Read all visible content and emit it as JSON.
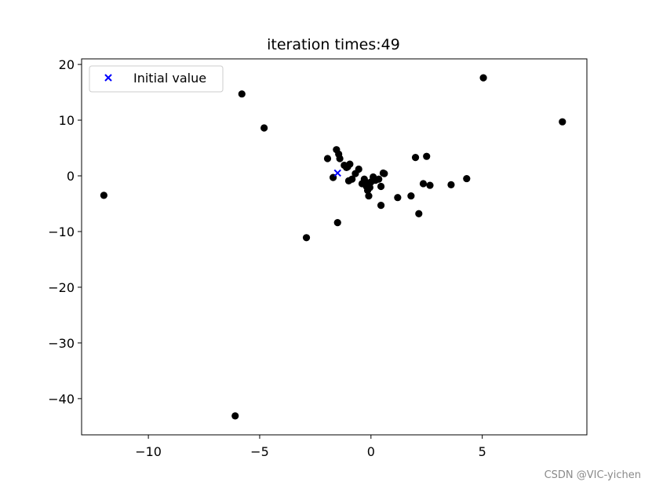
{
  "chart_data": {
    "type": "scatter",
    "title": "iteration times:49",
    "xlabel": "",
    "ylabel": "",
    "xlim": [
      -13,
      9.7
    ],
    "ylim": [
      -46.5,
      21
    ],
    "xticks": [
      -10,
      -5,
      0,
      5
    ],
    "yticks": [
      20,
      10,
      0,
      -10,
      -20,
      -30,
      -40
    ],
    "grid": false,
    "legend": {
      "placement": "top-left",
      "entries": [
        "Initial value"
      ]
    },
    "series": [
      {
        "name": "",
        "marker": "circle",
        "color": "#000000",
        "points": [
          [
            -12.0,
            -3.5
          ],
          [
            -5.8,
            14.7
          ],
          [
            -4.8,
            8.6
          ],
          [
            -2.9,
            -11.1
          ],
          [
            -6.1,
            -43.1
          ],
          [
            -1.5,
            -8.4
          ],
          [
            -1.95,
            3.1
          ],
          [
            -1.55,
            4.7
          ],
          [
            -1.45,
            3.9
          ],
          [
            -1.4,
            3.1
          ],
          [
            -1.7,
            -0.3
          ],
          [
            -1.2,
            1.9
          ],
          [
            -1.05,
            1.6
          ],
          [
            -0.95,
            2.1
          ],
          [
            -1.1,
            1.5
          ],
          [
            -1.0,
            -0.9
          ],
          [
            -0.85,
            -0.6
          ],
          [
            -0.7,
            0.4
          ],
          [
            -0.55,
            1.2
          ],
          [
            -0.4,
            -1.4
          ],
          [
            -0.3,
            -0.6
          ],
          [
            -0.25,
            -1.1
          ],
          [
            -0.2,
            -1.9
          ],
          [
            -0.15,
            -2.6
          ],
          [
            -0.1,
            -3.6
          ],
          [
            -0.05,
            -2.1
          ],
          [
            0.0,
            -1.1
          ],
          [
            0.1,
            -0.2
          ],
          [
            0.2,
            -0.8
          ],
          [
            0.35,
            -0.6
          ],
          [
            0.45,
            -1.9
          ],
          [
            0.55,
            0.5
          ],
          [
            0.6,
            0.4
          ],
          [
            0.45,
            -5.3
          ],
          [
            1.2,
            -3.9
          ],
          [
            1.8,
            -3.6
          ],
          [
            2.0,
            3.3
          ],
          [
            2.15,
            -6.8
          ],
          [
            2.35,
            -1.4
          ],
          [
            2.5,
            3.5
          ],
          [
            2.65,
            -1.7
          ],
          [
            3.6,
            -1.6
          ],
          [
            4.3,
            -0.5
          ],
          [
            5.05,
            17.6
          ],
          [
            8.6,
            9.7
          ]
        ]
      },
      {
        "name": "Initial value",
        "marker": "x",
        "color": "#0000ff",
        "points": [
          [
            -1.5,
            0.5
          ]
        ]
      }
    ]
  },
  "watermark": "CSDN @VIC-yichen"
}
